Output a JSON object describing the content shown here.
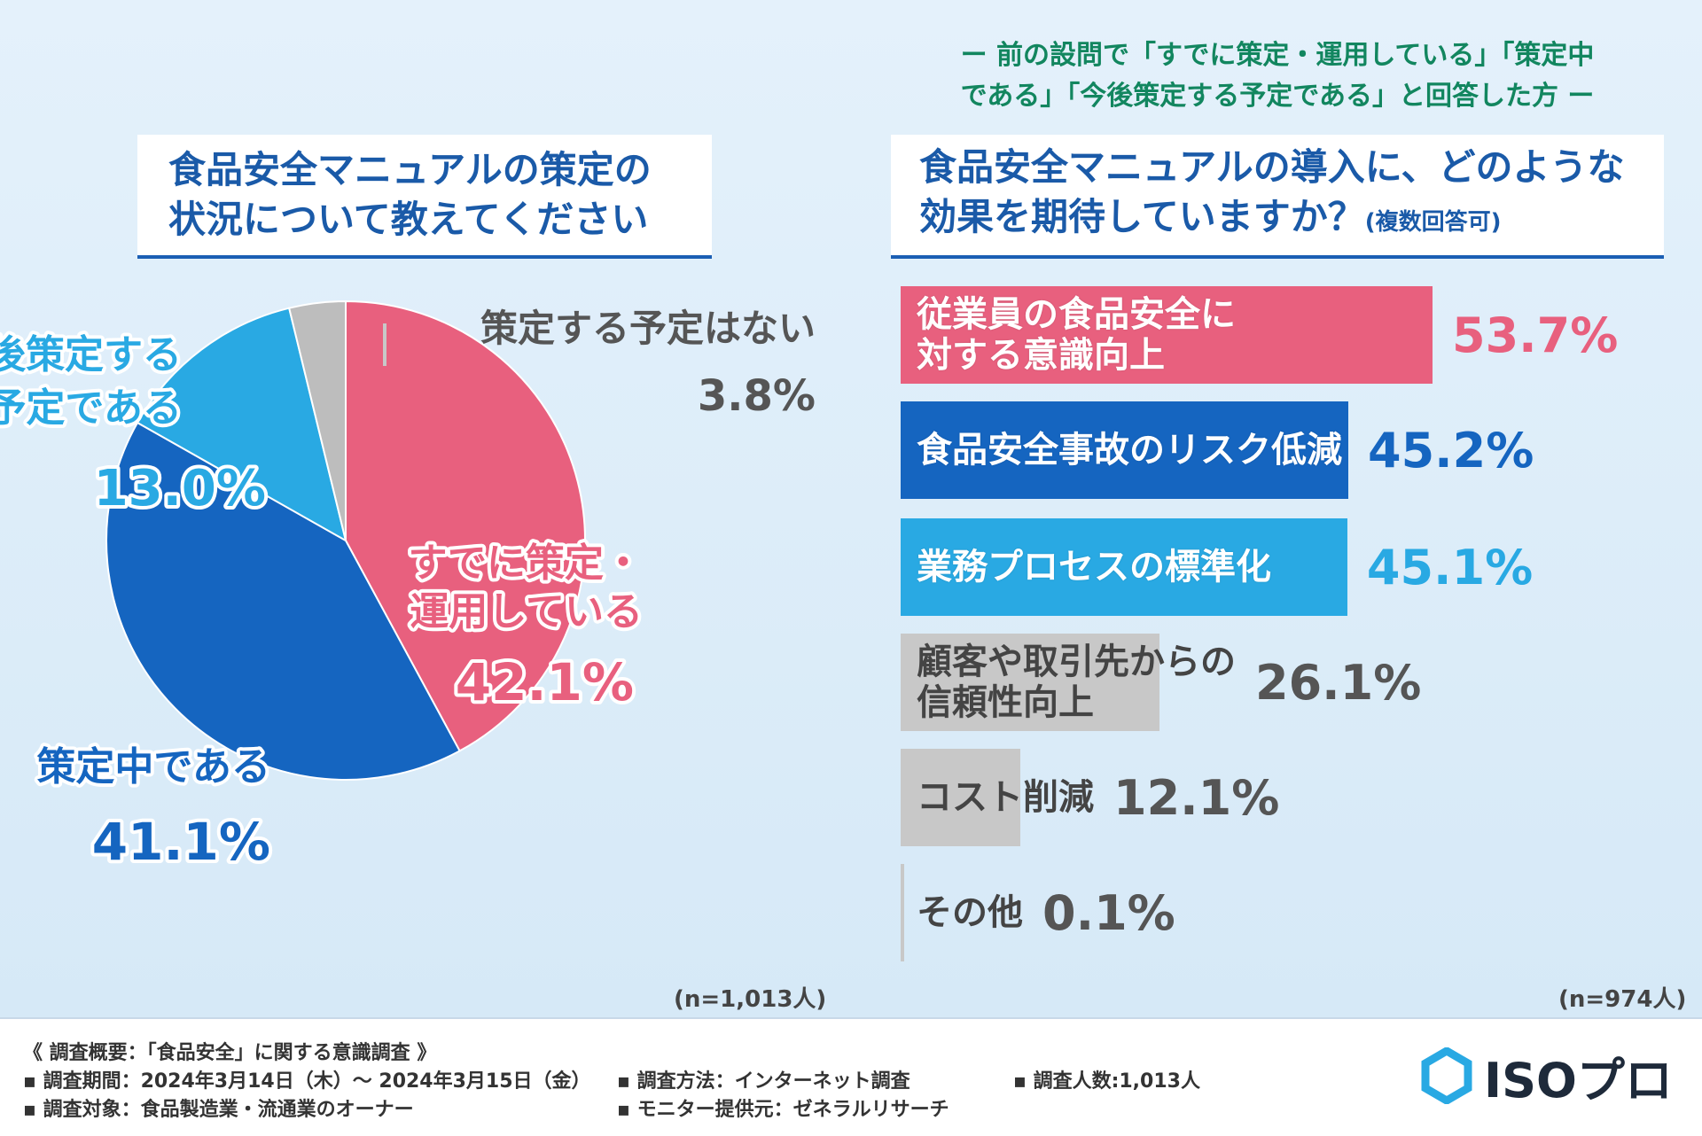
{
  "left_question": {
    "line1": "食品安全マニュアルの策定の",
    "line2": "状況について教えてください"
  },
  "right_subhead": {
    "line1": "ー 前の設問で「すでに策定・運用している」「策定中",
    "line2": "である」「今後策定する予定である」と回答した方 ー"
  },
  "right_question": {
    "line1": "食品安全マニュアルの導入に、どのような",
    "line2": "効果を期待していますか？",
    "note": "(複数回答可)"
  },
  "chart_data": [
    {
      "type": "pie",
      "categories": [
        "すでに策定・運用している",
        "策定中である",
        "今後策定する予定である",
        "策定する予定はない"
      ],
      "labels": [
        [
          "すでに策定・",
          "運用している"
        ],
        [
          "策定中である"
        ],
        [
          "今後策定する",
          "予定である"
        ],
        [
          "策定する予定はない"
        ]
      ],
      "values": [
        42.1,
        41.1,
        13.0,
        3.8
      ],
      "value_labels": [
        "42.1%",
        "41.1%",
        "13.0%",
        "3.8%"
      ],
      "colors": [
        "#e8607e",
        "#1565c0",
        "#29a9e3",
        "#bdbdbd"
      ],
      "n_label": "(n=1,013人)"
    },
    {
      "type": "bar",
      "orientation": "horizontal",
      "categories": [
        "従業員の食品安全に対する意識向上",
        "食品安全事故のリスク低減",
        "業務プロセスの標準化",
        "顧客や取引先からの信頼性向上",
        "コスト削減",
        "その他"
      ],
      "labels": [
        [
          "従業員の食品安全に",
          "対する意識向上"
        ],
        [
          "食品安全事故のリスク低減"
        ],
        [
          "業務プロセスの標準化"
        ],
        [
          "顧客や取引先からの",
          "信頼性向上"
        ],
        [
          "コスト削減"
        ],
        [
          "その他"
        ]
      ],
      "values": [
        53.7,
        45.2,
        45.1,
        26.1,
        12.1,
        0.1
      ],
      "value_labels": [
        "53.7%",
        "45.2%",
        "45.1%",
        "26.1%",
        "12.1%",
        "0.1%"
      ],
      "colors": [
        "#e8607e",
        "#1565c0",
        "#29a9e3",
        "#c8c8c8",
        "#c8c8c8",
        "#c8c8c8"
      ],
      "n_label": "(n=974人)"
    }
  ],
  "footer": {
    "title": "《 調査概要：「食品安全」に関する意識調査 》",
    "period": "▪ 調査期間：2024年3月14日（木）～  2024年3月15日（金）",
    "method": "▪ 調査方法：インターネット調査",
    "count": "▪ 調査人数:1,013人",
    "target": "▪ 調査対象：食品製造業・流通業のオーナー",
    "provider": "▪ モニター提供元：ゼネラルリサーチ"
  },
  "logo": {
    "text": "ISOプロ",
    "color": "#29a9e3"
  }
}
